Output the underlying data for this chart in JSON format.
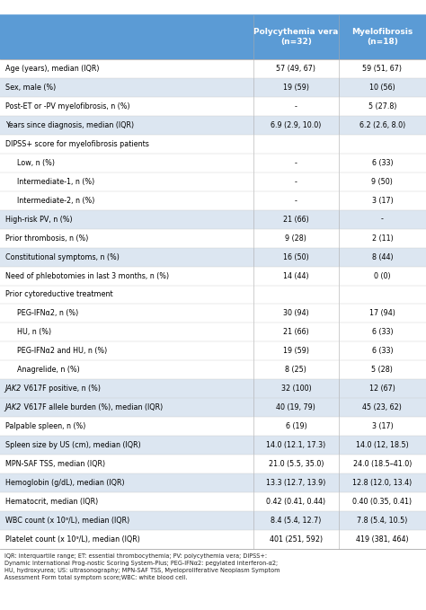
{
  "header_bg": "#5b9bd5",
  "header_text_color": "#ffffff",
  "row_bg_light": "#dce6f1",
  "row_bg_white": "#ffffff",
  "col2_header": "Polycythemia vera\n(n=32)",
  "col3_header": "Myelofibrosis\n(n=18)",
  "rows": [
    {
      "label": "Age (years), median (IQR)",
      "pv": "57 (49, 67)",
      "mf": "59 (51, 67)",
      "indent": 0,
      "shade": false
    },
    {
      "label": "Sex, male (%)",
      "pv": "19 (59)",
      "mf": "10 (56)",
      "indent": 0,
      "shade": true
    },
    {
      "label": "Post-ET or -PV myelofibrosis, n (%)",
      "pv": "-",
      "mf": "5 (27.8)",
      "indent": 0,
      "shade": false
    },
    {
      "label": "Years since diagnosis, median (IQR)",
      "pv": "6.9 (2.9, 10.0)",
      "mf": "6.2 (2.6, 8.0)",
      "indent": 0,
      "shade": true
    },
    {
      "label": "DIPSS+ score for myelofibrosis patients",
      "pv": "",
      "mf": "",
      "indent": 0,
      "shade": false,
      "section": true
    },
    {
      "label": "Low, n (%)",
      "pv": "-",
      "mf": "6 (33)",
      "indent": 1,
      "shade": false
    },
    {
      "label": "Intermediate-1, n (%)",
      "pv": "-",
      "mf": "9 (50)",
      "indent": 1,
      "shade": false
    },
    {
      "label": "Intermediate-2, n (%)",
      "pv": "-",
      "mf": "3 (17)",
      "indent": 1,
      "shade": false
    },
    {
      "label": "High-risk PV, n (%)",
      "pv": "21 (66)",
      "mf": "-",
      "indent": 0,
      "shade": true
    },
    {
      "label": "Prior thrombosis, n (%)",
      "pv": "9 (28)",
      "mf": "2 (11)",
      "indent": 0,
      "shade": false
    },
    {
      "label": "Constitutional symptoms, n (%)",
      "pv": "16 (50)",
      "mf": "8 (44)",
      "indent": 0,
      "shade": true
    },
    {
      "label": "Need of phlebotomies in last 3 months, n (%)",
      "pv": "14 (44)",
      "mf": "0 (0)",
      "indent": 0,
      "shade": false
    },
    {
      "label": "Prior cytoreductive treatment",
      "pv": "",
      "mf": "",
      "indent": 0,
      "shade": false,
      "section": true
    },
    {
      "label": "PEG-IFNα2, n (%)",
      "pv": "30 (94)",
      "mf": "17 (94)",
      "indent": 1,
      "shade": false
    },
    {
      "label": "HU, n (%)",
      "pv": "21 (66)",
      "mf": "6 (33)",
      "indent": 1,
      "shade": false
    },
    {
      "label": "PEG-IFNα2 and HU, n (%)",
      "pv": "19 (59)",
      "mf": "6 (33)",
      "indent": 1,
      "shade": false
    },
    {
      "label": "Anagrelide, n (%)",
      "pv": "8 (25)",
      "mf": "5 (28)",
      "indent": 1,
      "shade": false
    },
    {
      "label": "JAK2_V617F positive, n (%)",
      "pv": "32 (100)",
      "mf": "12 (67)",
      "indent": 0,
      "shade": true,
      "italic_prefix": "JAK2"
    },
    {
      "label": "JAK2_V617F allele burden (%), median (IQR)",
      "pv": "40 (19, 79)",
      "mf": "45 (23, 62)",
      "indent": 0,
      "shade": true,
      "italic_prefix": "JAK2",
      "bold_row": true
    },
    {
      "label": "Palpable spleen, n (%)",
      "pv": "6 (19)",
      "mf": "3 (17)",
      "indent": 0,
      "shade": false
    },
    {
      "label": "Spleen size by US (cm), median (IQR)",
      "pv": "14.0 (12.1, 17.3)",
      "mf": "14.0 (12, 18.5)",
      "indent": 0,
      "shade": true
    },
    {
      "label": "MPN-SAF TSS, median (IQR)",
      "pv": "21.0 (5.5, 35.0)",
      "mf": "24.0 (18.5–41.0)",
      "indent": 0,
      "shade": false
    },
    {
      "label": "Hemoglobin (g/dL), median (IQR)",
      "pv": "13.3 (12.7, 13.9)",
      "mf": "12.8 (12.0, 13.4)",
      "indent": 0,
      "shade": true
    },
    {
      "label": "Hematocrit, median (IQR)",
      "pv": "0.42 (0.41, 0.44)",
      "mf": "0.40 (0.35, 0.41)",
      "indent": 0,
      "shade": false
    },
    {
      "label": "WBC count (x 10⁹/L), median (IQR)",
      "pv": "8.4 (5.4, 12.7)",
      "mf": "7.8 (5.4, 10.5)",
      "indent": 0,
      "shade": true
    },
    {
      "label": "Platelet count (x 10⁹/L), median (IQR)",
      "pv": "401 (251, 592)",
      "mf": "419 (381, 464)",
      "indent": 0,
      "shade": false
    }
  ],
  "footnote": "IQR: interquartile range; ET: essential thrombocythemia; PV: polycythemia vera; DIPSS+:\nDynamic International Prog-nostic Scoring System-Plus; PEG-IFNα2: pegylated interferon-α2;\nHU, hydroxyurea; US: ultrasonography; MPN-SAF TSS, Myeloproliferative Neoplasm Symptom\nAssessment Form total symptom score;WBC: white blood cell."
}
